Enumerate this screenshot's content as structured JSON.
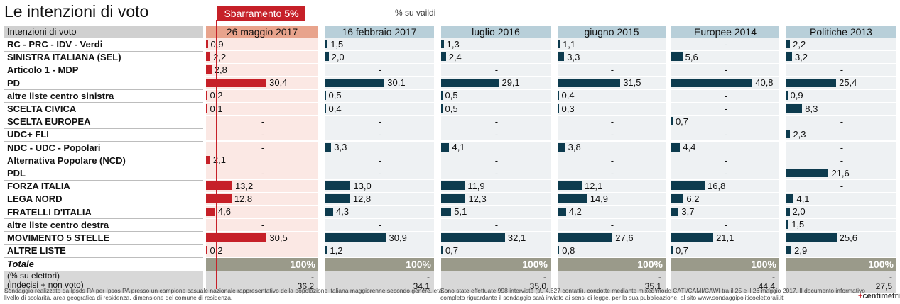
{
  "title": "Le intenzioni di voto",
  "threshold": {
    "label": "Sbarramento",
    "value_label": "5%",
    "value": 5
  },
  "note_pct": "% su vaildi",
  "row_header": "Intenzioni di voto",
  "colors": {
    "current_bar": "#c62028",
    "other_bar": "#0d3b4e",
    "current_header": "#e8a38c",
    "other_header": "#b8cfd9",
    "current_bg": "#fbe8e4",
    "other_bg": "#eef1f3",
    "total_bg": "#9a9a8a"
  },
  "chart_data": {
    "type": "table",
    "title": "Le intenzioni di voto",
    "columns": [
      "26 maggio 2017",
      "16 febbraio 2017",
      "luglio 2016",
      "giugno 2015",
      "Europee 2014",
      "Politiche 2013"
    ],
    "rows": [
      {
        "label": "RC - PRC - IDV - Verdi",
        "values": [
          "0,9",
          "1,5",
          "1,3",
          "1,1",
          "-",
          "2,2"
        ]
      },
      {
        "label": "SINISTRA ITALIANA (SEL)",
        "values": [
          "2,2",
          "2,0",
          "2,4",
          "3,3",
          "5,6",
          "3,2"
        ]
      },
      {
        "label": "Articolo 1 - MDP",
        "values": [
          "2,8",
          "-",
          "-",
          "-",
          "-",
          "-"
        ]
      },
      {
        "label": "PD",
        "values": [
          "30,4",
          "30,1",
          "29,1",
          "31,5",
          "40,8",
          "25,4"
        ]
      },
      {
        "label": "altre liste centro sinistra",
        "values": [
          "0,2",
          "0,5",
          "0,5",
          "0,4",
          "-",
          "0,9"
        ]
      },
      {
        "label": "SCELTA CIVICA",
        "values": [
          "0,1",
          "0,4",
          "0,5",
          "0,3",
          "-",
          "8,3"
        ]
      },
      {
        "label": "SCELTA EUROPEA",
        "values": [
          "-",
          "-",
          "-",
          "-",
          "0,7",
          "-"
        ]
      },
      {
        "label": "UDC+ FLI",
        "values": [
          "-",
          "-",
          "-",
          "-",
          "-",
          "2,3"
        ]
      },
      {
        "label": "NDC - UDC - Popolari",
        "values": [
          "-",
          "3,3",
          "4,1",
          "3,8",
          "4,4",
          "-"
        ]
      },
      {
        "label": "Alternativa Popolare (NCD)",
        "values": [
          "2,1",
          "-",
          "-",
          "-",
          "-",
          "-"
        ]
      },
      {
        "label": "PDL",
        "values": [
          "-",
          "-",
          "-",
          "-",
          "-",
          "21,6"
        ]
      },
      {
        "label": "FORZA ITALIA",
        "values": [
          "13,2",
          "13,0",
          "11,9",
          "12,1",
          "16,8",
          "-"
        ]
      },
      {
        "label": "LEGA NORD",
        "values": [
          "12,8",
          "12,8",
          "12,3",
          "14,9",
          "6,2",
          "4,1"
        ]
      },
      {
        "label": "FRATELLI D'ITALIA",
        "values": [
          "4,6",
          "4,3",
          "5,1",
          "4,2",
          "3,7",
          "2,0"
        ]
      },
      {
        "label": "altre liste centro destra",
        "values": [
          "-",
          "-",
          "-",
          "-",
          "-",
          "1,5"
        ]
      },
      {
        "label": "MOVIMENTO 5 STELLE",
        "values": [
          "30,5",
          "30,9",
          "32,1",
          "27,6",
          "21,1",
          "25,6"
        ]
      },
      {
        "label": "ALTRE LISTE",
        "values": [
          "0,2",
          "1,2",
          "0,7",
          "0,8",
          "0,7",
          "2,9"
        ]
      }
    ],
    "total": {
      "label": "Totale",
      "values": [
        "100%",
        "100%",
        "100%",
        "100%",
        "100%",
        "100%"
      ]
    },
    "extra": {
      "label_line1": "(% su elettori)",
      "label_line2": "(indecisi + non voto)",
      "line1_values": [
        "-",
        "-",
        "-",
        "-",
        "-",
        "-"
      ],
      "line2_values": [
        "36,2",
        "34,1",
        "35,0",
        "35,1",
        "44,4",
        "27,5"
      ]
    }
  },
  "footer": {
    "left_line1": "Sondaggio realizzato da Ipsos PA per Ipsos PA presso un campione casuale nazionale rappresentativo della popolazione italiana maggiorenne secondo genere, età,",
    "left_line2": "livello di scolarità, area geografica di residenza, dimensione del comune di residenza.",
    "right_line1": "Sono state effettuate 998 interviste (su 4.627 contatti), condotte mediante mixed mode CATI/CAMI/CAWI tra il 25 e il 26 maggio 2017. Il documento informativo",
    "right_line2": "completo riguardante il sondaggio sarà inviato ai sensi di legge, per la sua pubblicazione, al sito www.sondaggipoliticoelettorali.it",
    "logo_mark": "+",
    "logo_text": "centimetri"
  }
}
